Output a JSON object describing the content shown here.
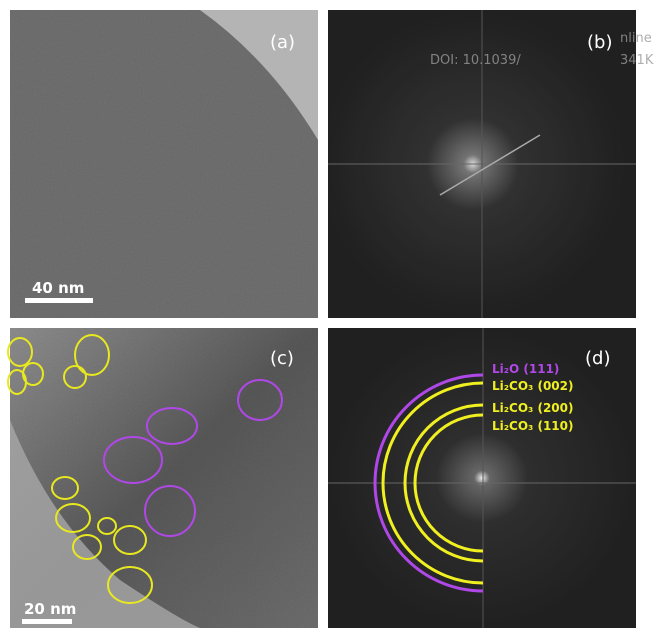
{
  "panels": [
    {
      "label": "(a)",
      "scale_bar": "40 nm"
    },
    {
      "label": "(b)"
    },
    {
      "label": "(c)",
      "scale_bar": "20 nm"
    },
    {
      "label": "(d)",
      "rings": [
        "Li₂O (111)",
        "Li₂CO₃ (002)",
        "Li₂CO₃ (200)",
        "Li₂CO₃ (110)"
      ]
    }
  ],
  "watermark": [
    "nline",
    "DOI: 10.1039/",
    "341K"
  ]
}
